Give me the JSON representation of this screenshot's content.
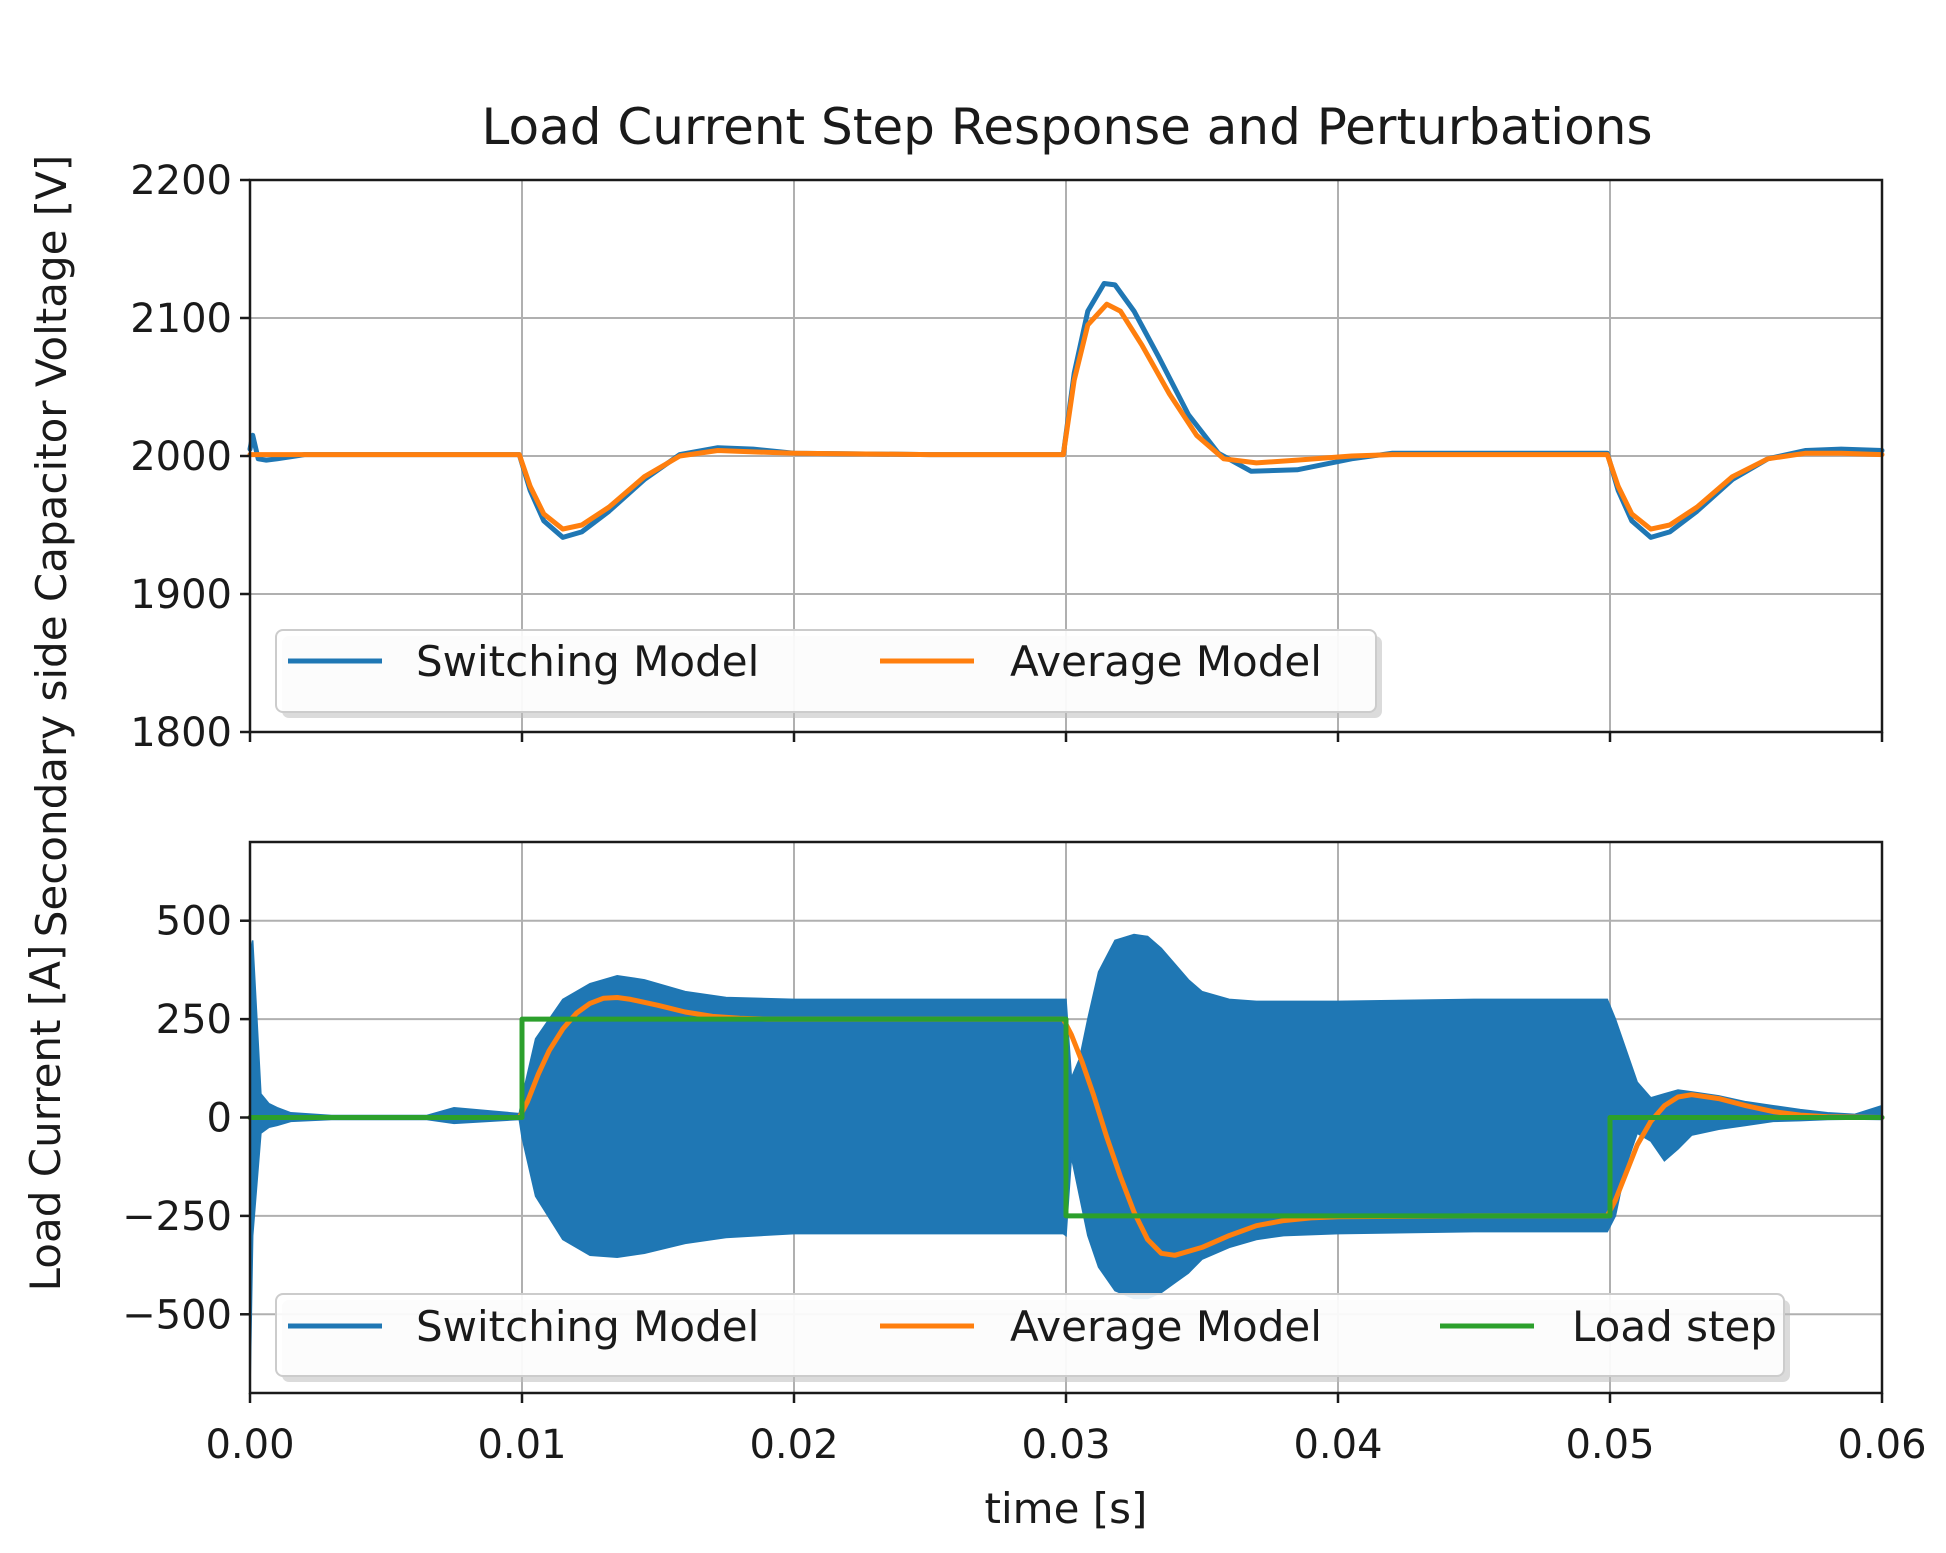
{
  "chart_data": {
    "type": "line",
    "title": "Load Current Step Response and Perturbations",
    "xlabel": "time [s]",
    "xlim": [
      0,
      0.06
    ],
    "xticks": [
      0.0,
      0.01,
      0.02,
      0.03,
      0.04,
      0.05,
      0.06
    ],
    "xtick_labels": [
      "0.00",
      "0.01",
      "0.02",
      "0.03",
      "0.04",
      "0.05",
      "0.06"
    ],
    "colors": {
      "switching": "#1f77b4",
      "average": "#ff7f0e",
      "load_step": "#2ca02c"
    },
    "panels": [
      {
        "name": "voltage",
        "ylabel": "Secondary side Capacitor Voltage [V]",
        "ylim": [
          1800,
          2200
        ],
        "yticks": [
          1800,
          1900,
          2000,
          2100,
          2200
        ],
        "ytick_labels": [
          "1800",
          "1900",
          "2000",
          "2100",
          "2200"
        ],
        "grid": true,
        "legend": {
          "placement": "lower-left",
          "entries": [
            "Switching Model",
            "Average Model"
          ]
        },
        "series": [
          {
            "name": "Switching Model",
            "x": [
              0,
              0.0001,
              0.0003,
              0.0006,
              0.001,
              0.002,
              0.005,
              0.0099,
              0.0103,
              0.0108,
              0.0115,
              0.0122,
              0.0132,
              0.0145,
              0.0158,
              0.0172,
              0.0185,
              0.02,
              0.025,
              0.0299,
              0.0303,
              0.0308,
              0.0314,
              0.0318,
              0.0325,
              0.0334,
              0.0345,
              0.0356,
              0.0368,
              0.0385,
              0.0405,
              0.042,
              0.045,
              0.0499,
              0.0503,
              0.0508,
              0.0515,
              0.0522,
              0.0532,
              0.0545,
              0.0558,
              0.0572,
              0.0585,
              0.06
            ],
            "y": [
              2005,
              2015,
              1998,
              1997,
              1998,
              2001,
              2001,
              2001,
              1975,
              1953,
              1941,
              1945,
              1960,
              1983,
              2001,
              2006,
              2005,
              2002,
              2001,
              2001,
              2060,
              2105,
              2125,
              2124,
              2105,
              2072,
              2030,
              2002,
              1989,
              1990,
              1998,
              2002,
              2002,
              2002,
              1975,
              1953,
              1941,
              1945,
              1960,
              1983,
              1998,
              2004,
              2005,
              2004
            ]
          },
          {
            "name": "Average Model",
            "x": [
              0,
              0.002,
              0.005,
              0.0099,
              0.0103,
              0.0108,
              0.0115,
              0.0122,
              0.0132,
              0.0145,
              0.0158,
              0.0172,
              0.0185,
              0.02,
              0.025,
              0.0299,
              0.0303,
              0.0308,
              0.0315,
              0.032,
              0.0328,
              0.0338,
              0.0348,
              0.0358,
              0.037,
              0.0385,
              0.0405,
              0.042,
              0.045,
              0.0499,
              0.0503,
              0.0508,
              0.0515,
              0.0522,
              0.0532,
              0.0545,
              0.0558,
              0.0572,
              0.0585,
              0.06
            ],
            "y": [
              2001,
              2001,
              2001,
              2001,
              1978,
              1958,
              1947,
              1950,
              1963,
              1985,
              2000,
              2004,
              2003,
              2002,
              2001,
              2001,
              2055,
              2095,
              2110,
              2105,
              2080,
              2045,
              2015,
              1998,
              1995,
              1997,
              2000,
              2001,
              2001,
              2001,
              1978,
              1958,
              1947,
              1950,
              1963,
              1985,
              1998,
              2002,
              2002,
              2001
            ]
          }
        ]
      },
      {
        "name": "current",
        "ylabel": "Load Current [A]",
        "ylim": [
          -700,
          700
        ],
        "yticks": [
          -500,
          -250,
          0,
          250,
          500
        ],
        "ytick_labels": [
          "−500",
          "−250",
          "0",
          "250",
          "500"
        ],
        "grid": true,
        "legend": {
          "placement": "lower-left",
          "entries": [
            "Switching Model",
            "Average Model",
            "Load step"
          ]
        },
        "switching_envelope": {
          "name": "Switching Model",
          "x": [
            0,
            0.0001,
            0.0004,
            0.0007,
            0.001,
            0.0015,
            0.003,
            0.0065,
            0.0075,
            0.0099,
            0.01,
            0.0105,
            0.0115,
            0.0125,
            0.0135,
            0.0145,
            0.016,
            0.0175,
            0.02,
            0.025,
            0.0299,
            0.03,
            0.0302,
            0.0305,
            0.0308,
            0.0312,
            0.0318,
            0.0325,
            0.033,
            0.0335,
            0.034,
            0.0345,
            0.035,
            0.036,
            0.037,
            0.038,
            0.04,
            0.045,
            0.0499,
            0.0502,
            0.0506,
            0.051,
            0.0515,
            0.052,
            0.0525,
            0.053,
            0.054,
            0.055,
            0.056,
            0.057,
            0.058,
            0.059,
            0.06
          ],
          "upper": [
            420,
            450,
            60,
            35,
            25,
            12,
            5,
            5,
            25,
            10,
            50,
            200,
            300,
            340,
            360,
            350,
            320,
            305,
            300,
            300,
            300,
            300,
            100,
            150,
            250,
            370,
            450,
            465,
            460,
            430,
            390,
            350,
            320,
            300,
            295,
            295,
            295,
            300,
            300,
            250,
            170,
            90,
            50,
            60,
            70,
            65,
            55,
            40,
            30,
            20,
            12,
            8,
            30
          ],
          "lower": [
            -690,
            -300,
            -40,
            -25,
            -20,
            -10,
            -5,
            -5,
            -15,
            -5,
            -50,
            -200,
            -310,
            -350,
            -355,
            -345,
            -320,
            -305,
            -295,
            -295,
            -295,
            -300,
            -100,
            -200,
            -300,
            -380,
            -440,
            -460,
            -460,
            -445,
            -420,
            -395,
            -360,
            -330,
            -310,
            -300,
            -295,
            -290,
            -290,
            -250,
            -120,
            -40,
            -60,
            -110,
            -80,
            -45,
            -30,
            -20,
            -10,
            -8,
            -5,
            -4,
            -5
          ]
        },
        "series": [
          {
            "name": "Average Model",
            "x": [
              0,
              0.005,
              0.0099,
              0.0102,
              0.0106,
              0.011,
              0.0115,
              0.012,
              0.0125,
              0.013,
              0.0135,
              0.014,
              0.015,
              0.016,
              0.017,
              0.018,
              0.019,
              0.02,
              0.025,
              0.0299,
              0.0302,
              0.0306,
              0.031,
              0.0315,
              0.032,
              0.0325,
              0.033,
              0.0335,
              0.034,
              0.035,
              0.036,
              0.037,
              0.038,
              0.039,
              0.04,
              0.045,
              0.0499,
              0.0502,
              0.0506,
              0.051,
              0.0515,
              0.052,
              0.0525,
              0.053,
              0.054,
              0.055,
              0.056,
              0.057,
              0.058,
              0.06
            ],
            "y": [
              0,
              0,
              0,
              40,
              110,
              170,
              225,
              265,
              290,
              303,
              305,
              300,
              285,
              268,
              257,
              252,
              250,
              250,
              250,
              250,
              210,
              140,
              60,
              -50,
              -150,
              -240,
              -310,
              -345,
              -350,
              -330,
              -300,
              -275,
              -262,
              -255,
              -252,
              -250,
              -250,
              -210,
              -140,
              -70,
              -10,
              30,
              52,
              58,
              48,
              30,
              15,
              6,
              2,
              0
            ]
          },
          {
            "name": "Load step",
            "x": [
              0,
              0.01,
              0.01,
              0.03,
              0.03,
              0.05,
              0.05,
              0.06
            ],
            "y": [
              0,
              0,
              250,
              250,
              -250,
              -250,
              0,
              0
            ]
          }
        ]
      }
    ]
  }
}
